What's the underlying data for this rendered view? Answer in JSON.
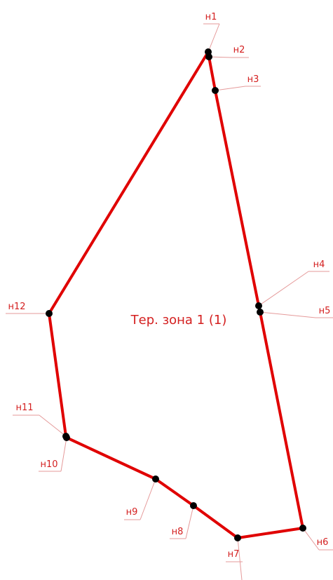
{
  "zone_label": "Тер. зона 1 (1)",
  "nodes": [
    {
      "label": "н1"
    },
    {
      "label": "н2"
    },
    {
      "label": "н3"
    },
    {
      "label": "н4"
    },
    {
      "label": "н5"
    },
    {
      "label": "н6"
    },
    {
      "label": "н7"
    },
    {
      "label": "н8"
    },
    {
      "label": "н9"
    },
    {
      "label": "н10"
    },
    {
      "label": "н11"
    },
    {
      "label": "н12"
    }
  ]
}
